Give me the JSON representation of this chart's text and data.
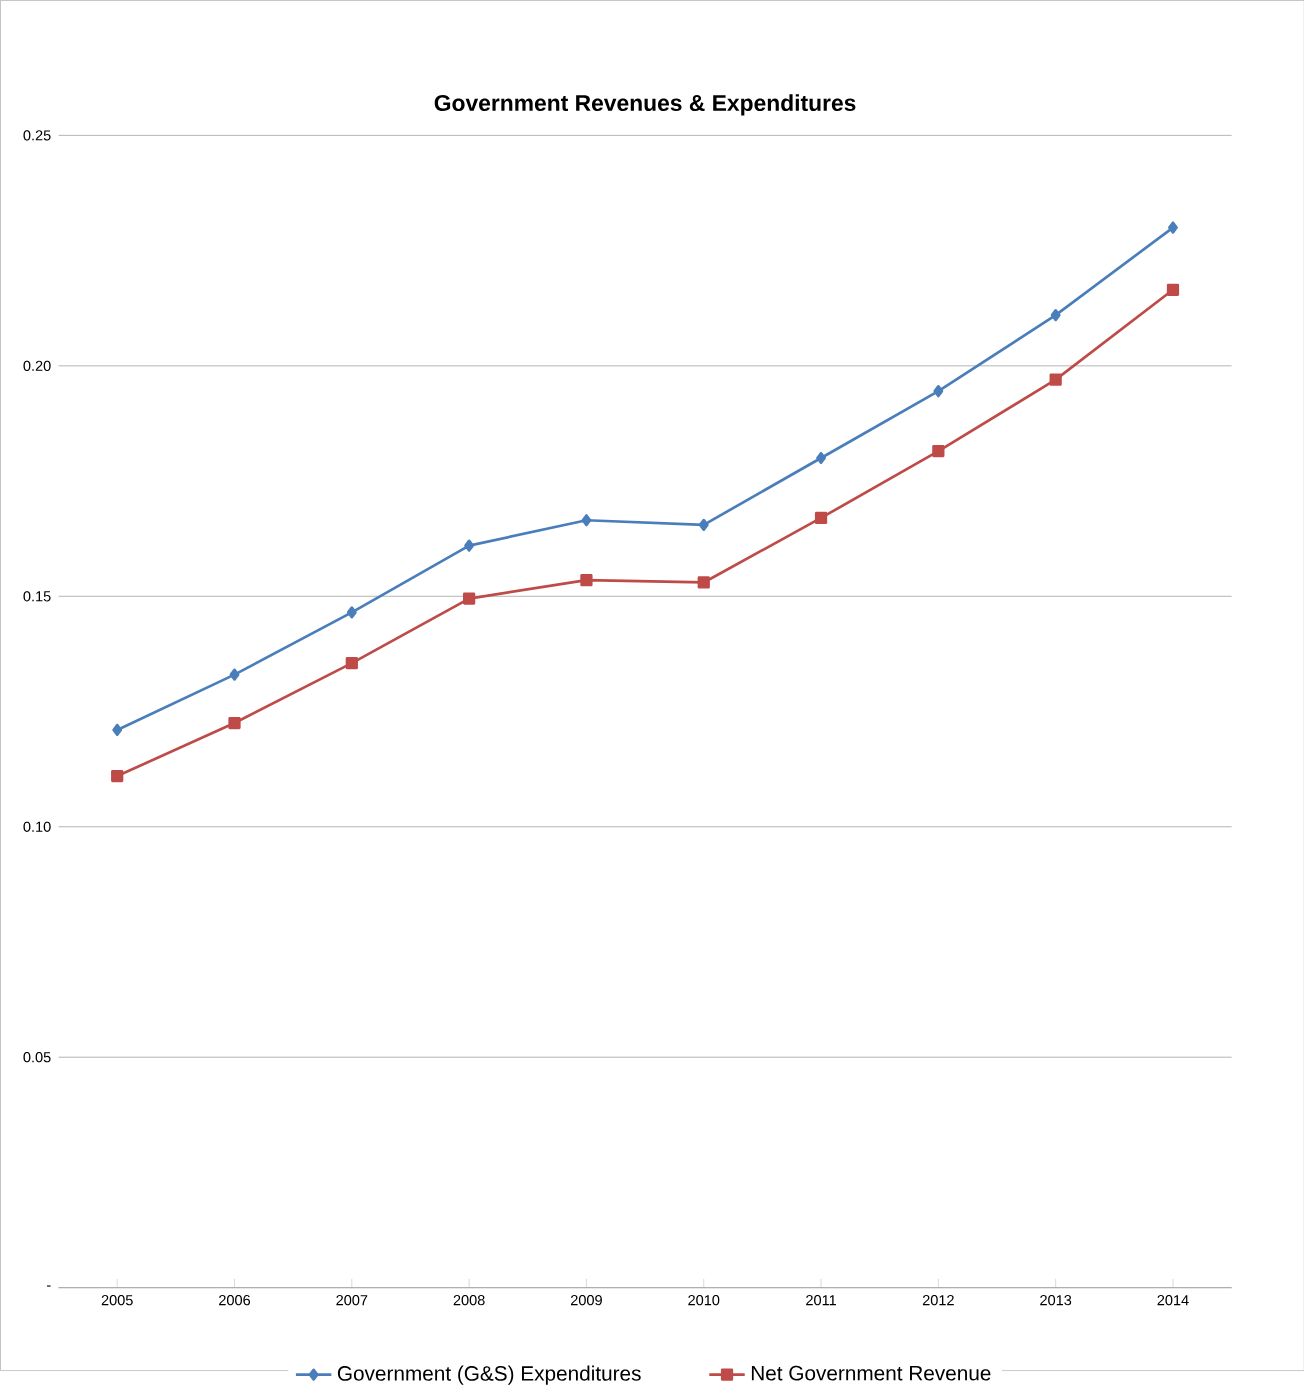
{
  "chart_data": {
    "type": "line",
    "title": "Government Revenues & Expenditures",
    "categories": [
      "2005",
      "2006",
      "2007",
      "2008",
      "2009",
      "2010",
      "2011",
      "2012",
      "2013",
      "2014"
    ],
    "series": [
      {
        "name": "Government (G&S) Expenditures",
        "color": "#4a7ebb",
        "marker": "diamond",
        "values": [
          0.121,
          0.133,
          0.1465,
          0.161,
          0.1665,
          0.1655,
          0.18,
          0.1945,
          0.211,
          0.23
        ]
      },
      {
        "name": "Net Government Revenue",
        "color": "#be4b48",
        "marker": "square",
        "values": [
          0.111,
          0.1225,
          0.1355,
          0.1495,
          0.1535,
          0.153,
          0.167,
          0.1815,
          0.197,
          0.2165
        ]
      }
    ],
    "ylim": [
      0,
      0.25
    ],
    "yticks": [
      {
        "value": 0,
        "label": "-"
      },
      {
        "value": 0.05,
        "label": "0.05"
      },
      {
        "value": 0.1,
        "label": "0.10"
      },
      {
        "value": 0.15,
        "label": "0.15"
      },
      {
        "value": 0.2,
        "label": "0.20"
      },
      {
        "value": 0.25,
        "label": "0.25"
      }
    ],
    "grid": "y",
    "legend": "bottom",
    "line_style": "solid"
  }
}
